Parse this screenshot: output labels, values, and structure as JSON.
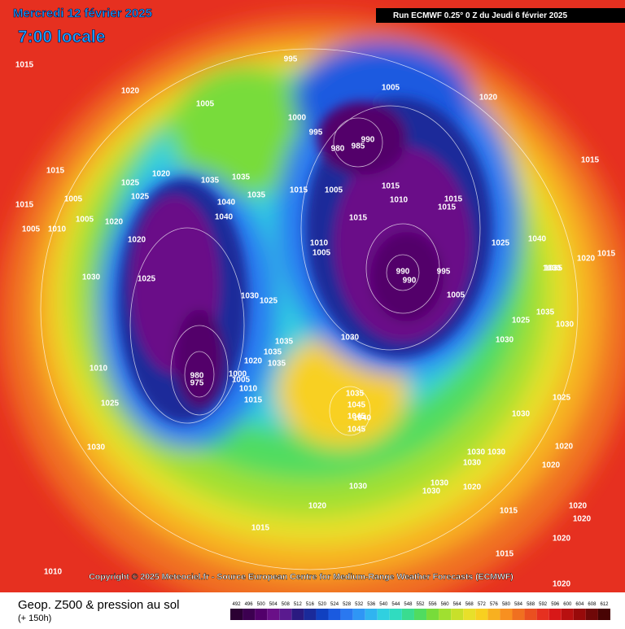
{
  "header": {
    "date": "Mercredi 12 février 2025",
    "time": "7:00 locale",
    "run": "Run ECMWF 0.25° 0 Z du Jeudi 6 février 2025"
  },
  "copyright": "Copyright © 2025 Meteociel.fr - Source European Centre for Medium-Range Weather Forecasts (ECMWF)",
  "legend": {
    "title": "Geop. Z500 & pression au sol",
    "subtitle": "(+ 150h)",
    "values": [
      492,
      496,
      500,
      504,
      508,
      512,
      516,
      520,
      524,
      528,
      532,
      536,
      540,
      544,
      548,
      552,
      556,
      560,
      564,
      568,
      572,
      576,
      580,
      584,
      588,
      592,
      596,
      600,
      604,
      608,
      612
    ],
    "colors": [
      "#2b0033",
      "#3c0050",
      "#52006b",
      "#6a1088",
      "#5a1a8f",
      "#2a1a80",
      "#1a2a9a",
      "#1040c0",
      "#1a5ae0",
      "#2a78f0",
      "#2f96f5",
      "#30b4f0",
      "#30d0e0",
      "#30dcc0",
      "#3adc90",
      "#50dc60",
      "#78dc3a",
      "#a0e030",
      "#c8e02a",
      "#e8e02a",
      "#f8d020",
      "#f8b020",
      "#f89020",
      "#f07020",
      "#ea5020",
      "#e63020",
      "#d81818",
      "#b81010",
      "#980a0a",
      "#700808",
      "#480404"
    ]
  },
  "pressure_labels": [
    1015,
    1020,
    1005,
    995,
    1000,
    995,
    980,
    990,
    985,
    1005,
    1020,
    1015,
    1015,
    1005,
    1015,
    1005,
    1010,
    1005,
    1025,
    1025,
    1020,
    1020,
    1020,
    1030,
    1025,
    1035,
    1035,
    1040,
    1040,
    1035,
    1015,
    1005,
    1010,
    1005,
    1015,
    1015,
    1010,
    1015,
    1015,
    1025,
    1040,
    990,
    990,
    995,
    1005,
    1030,
    1025,
    1035,
    1035,
    1035,
    1020,
    980,
    975,
    1000,
    1005,
    1010,
    1015,
    1010,
    1025,
    1030,
    1035,
    1045,
    1045,
    1040,
    1045,
    1030,
    1025,
    1020,
    1020,
    1030,
    1030,
    1030,
    1030,
    1030,
    1020,
    1030,
    1020,
    1015,
    1015,
    1015,
    1020,
    1020,
    1020,
    1020,
    1010,
    1030,
    1030,
    1030,
    1035,
    1035,
    1025,
    1015,
    1020,
    1030
  ]
}
